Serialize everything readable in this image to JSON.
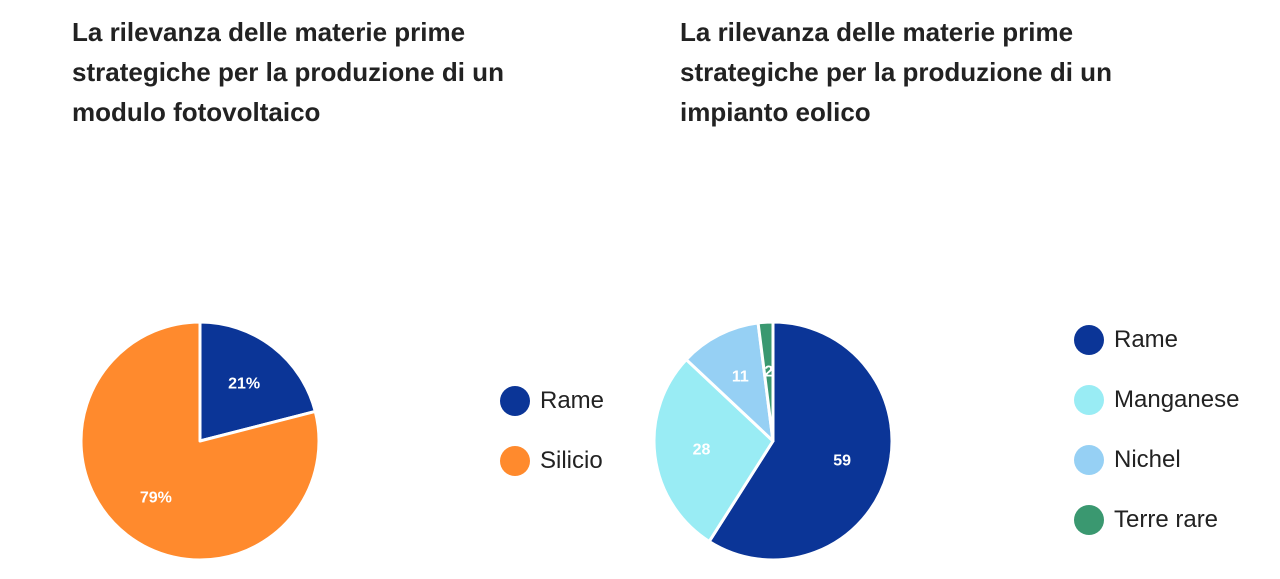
{
  "chart_data": [
    {
      "type": "pie",
      "title": "La rilevanza delle materie prime strategiche per la produzione di un modulo fotovoltaico",
      "categories": [
        "Rame",
        "Silicio"
      ],
      "values": [
        21,
        79
      ],
      "labels": [
        "21%",
        "79%"
      ],
      "colors": [
        "#0b3597",
        "#ff8a2d"
      ],
      "legend_position": "right"
    },
    {
      "type": "pie",
      "title": "La rilevanza delle materie prime strategiche per la produzione di un impianto eolico",
      "categories": [
        "Rame",
        "Manganese",
        "Nichel",
        "Terre rare"
      ],
      "values": [
        59,
        28,
        11,
        2
      ],
      "labels": [
        "59",
        "28",
        "11",
        "2"
      ],
      "colors": [
        "#0b3597",
        "#99ecf4",
        "#96d0f4",
        "#3a9870"
      ],
      "legend_position": "right"
    }
  ]
}
